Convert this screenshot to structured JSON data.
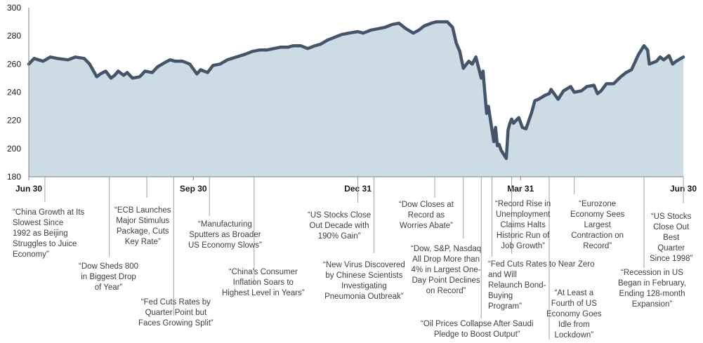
{
  "chart_data": {
    "type": "area",
    "ylim": [
      180,
      300
    ],
    "yticks": [
      180,
      200,
      220,
      240,
      260,
      280,
      300
    ],
    "x_range": [
      "2019-06-30",
      "2020-06-30"
    ],
    "xticks": [
      {
        "date": "2019-06-30",
        "label": "Jun 30"
      },
      {
        "date": "2019-09-30",
        "label": "Sep 30"
      },
      {
        "date": "2019-12-31",
        "label": "Dec 31"
      },
      {
        "date": "2020-03-31",
        "label": "Mar 31"
      },
      {
        "date": "2020-06-30",
        "label": "Jun 30"
      }
    ],
    "grid": false,
    "colors": {
      "line": "#44546a",
      "fill": "#ccdce4",
      "axis": "#7f7f7f",
      "text": "#1a1a1a",
      "annotation": "#404040"
    },
    "series": [
      {
        "points": [
          [
            "2019-06-30",
            260
          ],
          [
            "2019-07-03",
            264
          ],
          [
            "2019-07-08",
            262
          ],
          [
            "2019-07-12",
            265
          ],
          [
            "2019-07-16",
            264
          ],
          [
            "2019-07-22",
            263
          ],
          [
            "2019-07-26",
            265
          ],
          [
            "2019-07-31",
            264
          ],
          [
            "2019-08-03",
            260
          ],
          [
            "2019-08-07",
            251
          ],
          [
            "2019-08-09",
            253
          ],
          [
            "2019-08-12",
            255
          ],
          [
            "2019-08-15",
            250
          ],
          [
            "2019-08-17",
            252
          ],
          [
            "2019-08-19",
            255
          ],
          [
            "2019-08-22",
            252
          ],
          [
            "2019-08-24",
            254
          ],
          [
            "2019-08-27",
            250
          ],
          [
            "2019-08-31",
            251
          ],
          [
            "2019-09-03",
            255
          ],
          [
            "2019-09-07",
            254
          ],
          [
            "2019-09-10",
            258
          ],
          [
            "2019-09-14",
            261
          ],
          [
            "2019-09-17",
            263
          ],
          [
            "2019-09-20",
            262
          ],
          [
            "2019-09-24",
            262
          ],
          [
            "2019-09-28",
            260
          ],
          [
            "2019-10-02",
            253
          ],
          [
            "2019-10-04",
            256
          ],
          [
            "2019-10-08",
            254
          ],
          [
            "2019-10-11",
            259
          ],
          [
            "2019-10-15",
            260
          ],
          [
            "2019-10-19",
            263
          ],
          [
            "2019-10-24",
            265
          ],
          [
            "2019-10-29",
            267
          ],
          [
            "2019-11-02",
            269
          ],
          [
            "2019-11-06",
            270
          ],
          [
            "2019-11-10",
            270
          ],
          [
            "2019-11-14",
            271
          ],
          [
            "2019-11-18",
            272
          ],
          [
            "2019-11-22",
            272
          ],
          [
            "2019-11-25",
            273
          ],
          [
            "2019-11-29",
            273
          ],
          [
            "2019-12-03",
            271
          ],
          [
            "2019-12-07",
            273
          ],
          [
            "2019-12-10",
            274
          ],
          [
            "2019-12-14",
            277
          ],
          [
            "2019-12-18",
            279
          ],
          [
            "2019-12-22",
            281
          ],
          [
            "2019-12-26",
            282
          ],
          [
            "2019-12-31",
            283
          ],
          [
            "2020-01-03",
            282
          ],
          [
            "2020-01-07",
            284
          ],
          [
            "2020-01-11",
            285
          ],
          [
            "2020-01-15",
            286
          ],
          [
            "2020-01-19",
            288
          ],
          [
            "2020-01-23",
            289
          ],
          [
            "2020-01-27",
            285
          ],
          [
            "2020-01-31",
            282
          ],
          [
            "2020-02-03",
            284
          ],
          [
            "2020-02-06",
            287
          ],
          [
            "2020-02-10",
            289
          ],
          [
            "2020-02-13",
            290
          ],
          [
            "2020-02-17",
            290
          ],
          [
            "2020-02-19",
            290
          ],
          [
            "2020-02-22",
            286
          ],
          [
            "2020-02-24",
            275
          ],
          [
            "2020-02-26",
            269
          ],
          [
            "2020-02-28",
            257
          ],
          [
            "2020-03-02",
            262
          ],
          [
            "2020-03-04",
            260
          ],
          [
            "2020-03-06",
            265
          ],
          [
            "2020-03-09",
            250
          ],
          [
            "2020-03-10",
            255
          ],
          [
            "2020-03-11",
            240
          ],
          [
            "2020-03-12",
            225
          ],
          [
            "2020-03-13",
            230
          ],
          [
            "2020-03-16",
            205
          ],
          [
            "2020-03-17",
            215
          ],
          [
            "2020-03-18",
            202
          ],
          [
            "2020-03-19",
            203
          ],
          [
            "2020-03-20",
            199
          ],
          [
            "2020-03-23",
            193
          ],
          [
            "2020-03-24",
            213
          ],
          [
            "2020-03-25",
            218
          ],
          [
            "2020-03-26",
            221
          ],
          [
            "2020-03-27",
            218
          ],
          [
            "2020-03-30",
            222
          ],
          [
            "2020-04-01",
            215
          ],
          [
            "2020-04-03",
            214
          ],
          [
            "2020-04-06",
            225
          ],
          [
            "2020-04-08",
            234
          ],
          [
            "2020-04-10",
            235
          ],
          [
            "2020-04-14",
            238
          ],
          [
            "2020-04-16",
            239
          ],
          [
            "2020-04-17",
            242
          ],
          [
            "2020-04-21",
            235
          ],
          [
            "2020-04-24",
            241
          ],
          [
            "2020-04-28",
            244
          ],
          [
            "2020-04-30",
            240
          ],
          [
            "2020-05-04",
            241
          ],
          [
            "2020-05-07",
            244
          ],
          [
            "2020-05-11",
            245
          ],
          [
            "2020-05-13",
            239
          ],
          [
            "2020-05-15",
            241
          ],
          [
            "2020-05-18",
            246
          ],
          [
            "2020-05-22",
            246
          ],
          [
            "2020-05-26",
            251
          ],
          [
            "2020-05-29",
            254
          ],
          [
            "2020-06-01",
            256
          ],
          [
            "2020-06-05",
            267
          ],
          [
            "2020-06-08",
            273
          ],
          [
            "2020-06-10",
            270
          ],
          [
            "2020-06-11",
            260
          ],
          [
            "2020-06-15",
            262
          ],
          [
            "2020-06-17",
            265
          ],
          [
            "2020-06-19",
            263
          ],
          [
            "2020-06-22",
            266
          ],
          [
            "2020-06-24",
            260
          ],
          [
            "2020-06-26",
            262
          ],
          [
            "2020-06-30",
            265
          ]
        ]
      }
    ]
  },
  "annotations": [
    {
      "date": "2019-07-09",
      "text": "“China Growth at Its\nSlowest Since\n1992 as Beijing\nStruggles to Juice\nEconomy”"
    },
    {
      "date": "2019-08-14",
      "text": "“Dow Sheds 800\nin Biggest Drop\nof Year”"
    },
    {
      "date": "2019-09-04",
      "text": "“ECB Launches\nMajor Stimulus\nPackage, Cuts\nKey Rate”"
    },
    {
      "date": "2019-09-19",
      "text": "“Fed Cuts Rates by\nQuarter Point but\nFaces Growing Split”"
    },
    {
      "date": "2019-10-09",
      "text": "“Manufacturing\nSputters as Broader\nUS Economy Slows”"
    },
    {
      "date": "2019-11-03",
      "text": "“China's Consumer\nInflation Soars to\nHighest Level in Years”"
    },
    {
      "date": "2019-12-31",
      "text": "“US Stocks Close\nOut Decade with\n190% Gain”"
    },
    {
      "date": "2020-01-09",
      "text": "“New Virus Discovered\nby Chinese Scientists\nInvestigating\nPneumonia Outbreak”"
    },
    {
      "date": "2020-02-12",
      "text": "“Dow Closes at\nRecord as\nWorries Abate”"
    },
    {
      "date": "2020-02-28",
      "text": "“Dow, S&P, Nasdaq\nAll Drop More than\n4% in Largest One-\nDay Point Declines\non Record”"
    },
    {
      "date": "2020-03-09",
      "text": "“Oil Prices Collapse After Saudi\nPledge to Boost Output”"
    },
    {
      "date": "2020-03-15",
      "text": "“Fed Cuts Rates to Near Zero\nand Will\nRelaunch Bond-\nBuying\nProgram”"
    },
    {
      "date": "2020-03-26",
      "text": "“Record Rise in\nUnemployment\nClaims Halts\nHistoric Run of\nJob Growth”"
    },
    {
      "date": "2020-04-16",
      "text": "“At Least a\nFourth of US\nEconomy Goes\nIdle from\nLockdown”"
    },
    {
      "date": "2020-04-30",
      "text": "“Eurozone\nEconomy Sees\nLargest\nContraction on\nRecord”"
    },
    {
      "date": "2020-06-08",
      "text": "“Recession in US\nBegan in February,\nEnding 128-month\nExpansion”"
    },
    {
      "date": "2020-06-30",
      "text": "“US Stocks\nClose Out\nBest\nQuarter\nSince 1998”"
    }
  ]
}
